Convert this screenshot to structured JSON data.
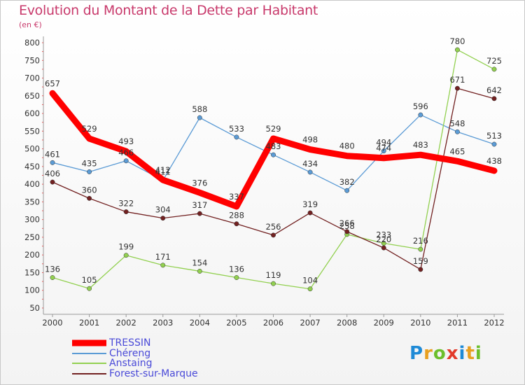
{
  "header": {
    "title": "Evolution du Montant de la Dette par Habitant",
    "unit": "(en €)"
  },
  "logo": {
    "text": "Proxiti"
  },
  "chart_data": {
    "type": "line",
    "title": "Evolution du Montant de la Dette par Habitant",
    "ylabel": "(en €)",
    "xlabel": "",
    "ylim": [
      50,
      800
    ],
    "yticks": [
      50,
      100,
      150,
      200,
      250,
      300,
      350,
      400,
      450,
      500,
      550,
      600,
      650,
      700,
      750,
      800
    ],
    "x": [
      "2000",
      "2001",
      "2002",
      "2003",
      "2004",
      "2005",
      "2006",
      "2007",
      "2008",
      "2009",
      "2010",
      "2011",
      "2012"
    ],
    "grid": false,
    "legend_position": "bottom-left",
    "series": [
      {
        "name": "TRESSIN",
        "color": "#ff0000",
        "values": [
          657,
          529,
          493,
          412,
          376,
          337,
          529,
          498,
          480,
          474,
          483,
          465,
          438
        ]
      },
      {
        "name": "Chéreng",
        "color": "#5b9bd5",
        "values": [
          461,
          435,
          466,
          411,
          588,
          533,
          483,
          434,
          382,
          494,
          596,
          548,
          513
        ]
      },
      {
        "name": "Anstaing",
        "color": "#92d050",
        "values": [
          136,
          105,
          199,
          171,
          154,
          136,
          119,
          104,
          258,
          233,
          216,
          780,
          725
        ]
      },
      {
        "name": "Forest-sur-Marque",
        "color": "#722121",
        "values": [
          406,
          360,
          322,
          304,
          317,
          288,
          256,
          319,
          266,
          220,
          159,
          671,
          642
        ]
      }
    ]
  }
}
